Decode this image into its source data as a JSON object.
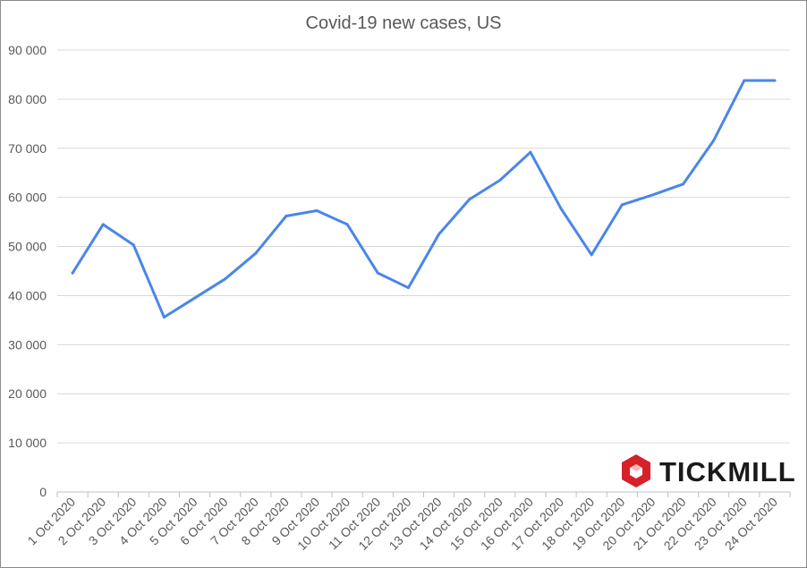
{
  "chart_data": {
    "type": "line",
    "title": "Covid-19 new cases, US",
    "xlabel": "",
    "ylabel": "",
    "ylim": [
      0,
      90000
    ],
    "yticks": [
      0,
      10000,
      20000,
      30000,
      40000,
      50000,
      60000,
      70000,
      80000,
      90000
    ],
    "ytick_labels": [
      "0",
      "10 000",
      "20 000",
      "30 000",
      "40 000",
      "50 000",
      "60 000",
      "70 000",
      "80 000",
      "90 000"
    ],
    "grid": true,
    "legend": "none",
    "categories": [
      "1 Oct 2020",
      "2 Oct 2020",
      "3 Oct 2020",
      "4 Oct 2020",
      "5 Oct 2020",
      "6 Oct 2020",
      "7 Oct 2020",
      "8 Oct 2020",
      "9 Oct 2020",
      "10 Oct 2020",
      "11 Oct 2020",
      "12 Oct 2020",
      "13 Oct 2020",
      "14 Oct 2020",
      "15 Oct 2020",
      "16 Oct 2020",
      "17 Oct 2020",
      "18 Oct 2020",
      "19 Oct 2020",
      "20 Oct 2020",
      "21 Oct 2020",
      "22 Oct 2020",
      "23 Oct 2020",
      "24 Oct 2020"
    ],
    "series": [
      {
        "color": "#4a86e8",
        "values": [
          44600,
          54500,
          50300,
          35600,
          39500,
          43400,
          48600,
          56200,
          57300,
          54500,
          44600,
          41600,
          52500,
          59600,
          63500,
          69200,
          57700,
          48300,
          58500,
          60500,
          62700,
          71600,
          83800,
          83800
        ]
      }
    ]
  },
  "brand": {
    "name": "TICKMILL",
    "color": "#d6202a",
    "icon": "tickmill-hexagon-logo-icon"
  }
}
